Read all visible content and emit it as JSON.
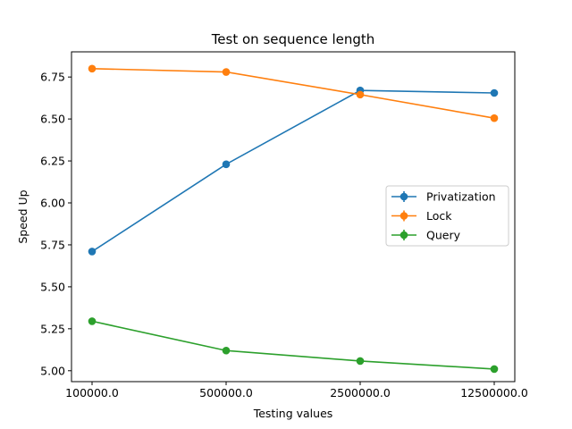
{
  "chart_data": {
    "type": "line",
    "title": "Test on sequence length",
    "xlabel": "Testing values",
    "ylabel": "Speed Up",
    "categories": [
      "100000.0",
      "500000.0",
      "2500000.0",
      "12500000.0"
    ],
    "yticks": [
      "5.00",
      "5.25",
      "5.50",
      "5.75",
      "6.00",
      "6.25",
      "6.50",
      "6.75"
    ],
    "ylim": [
      4.935,
      6.9
    ],
    "grid": false,
    "legend_position": "center-right",
    "series": [
      {
        "name": "Privatization",
        "color": "#1f77b4",
        "values": [
          5.71,
          6.23,
          6.67,
          6.655
        ]
      },
      {
        "name": "Lock",
        "color": "#ff7f0e",
        "values": [
          6.8,
          6.78,
          6.645,
          6.505
        ]
      },
      {
        "name": "Query",
        "color": "#2ca02c",
        "values": [
          5.295,
          5.12,
          5.058,
          5.01
        ]
      }
    ]
  }
}
